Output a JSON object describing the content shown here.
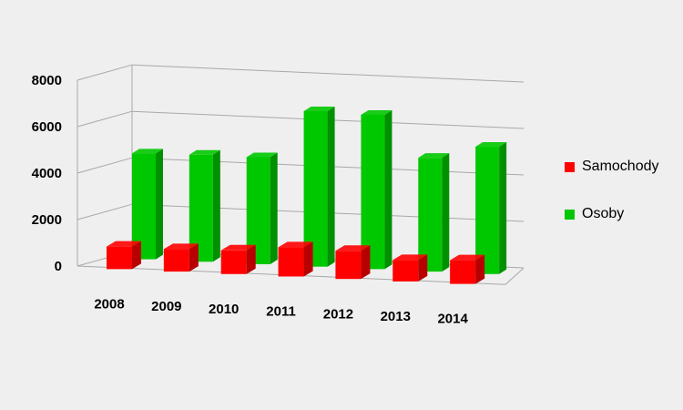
{
  "chart_data": {
    "type": "bar",
    "categories": [
      "2008",
      "2009",
      "2010",
      "2011",
      "2012",
      "2013",
      "2014"
    ],
    "series": [
      {
        "name": "Samochody",
        "values": [
          1000,
          1000,
          1050,
          1300,
          1250,
          950,
          1050
        ],
        "color": "#ff0000"
      },
      {
        "name": "Osoby",
        "values": [
          4700,
          4750,
          4750,
          6900,
          6850,
          5050,
          5650
        ],
        "color": "#00c800"
      }
    ],
    "yticks": [
      0,
      2000,
      4000,
      6000,
      8000
    ],
    "ylim": [
      0,
      8000
    ],
    "grid": true,
    "legend_position": "right",
    "style": "3d-clustered-column"
  }
}
